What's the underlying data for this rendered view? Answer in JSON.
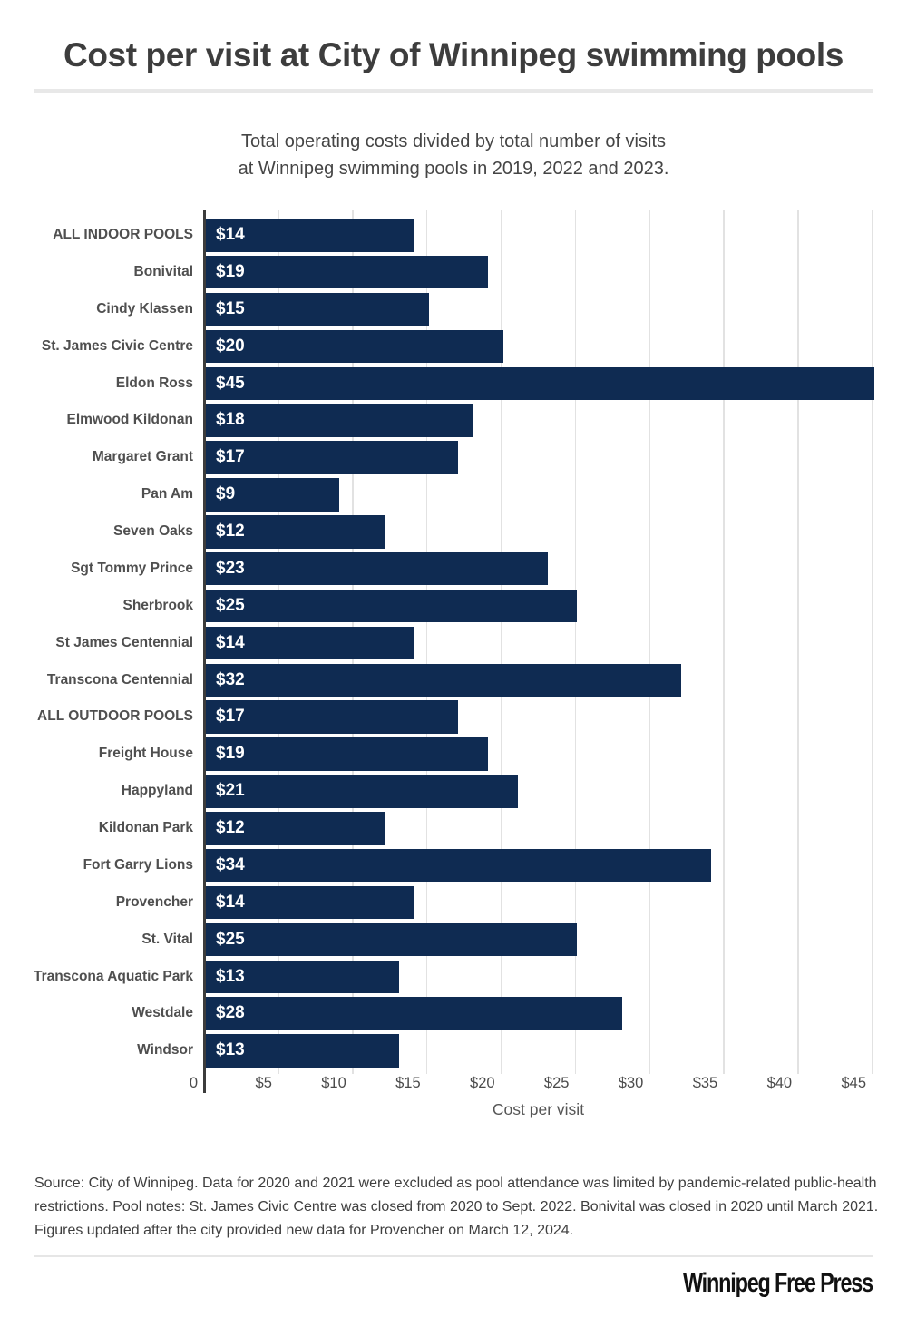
{
  "header": {
    "title": "Cost per visit at City of Winnipeg swimming pools",
    "subtitle_line1": "Total operating costs divided by total number of visits",
    "subtitle_line2": "at Winnipeg swimming pools in 2019, 2022 and 2023."
  },
  "chart_data": {
    "type": "bar",
    "orientation": "horizontal",
    "title": "Cost per visit at City of Winnipeg swimming pools",
    "subtitle": "Total operating costs divided by total number of visits at Winnipeg swimming pools in 2019, 2022 and 2023.",
    "categories": [
      "ALL INDOOR POOLS",
      "Bonivital",
      "Cindy Klassen",
      "St. James Civic Centre",
      "Eldon Ross",
      "Elmwood Kildonan",
      "Margaret Grant",
      "Pan Am",
      "Seven Oaks",
      "Sgt Tommy Prince",
      "Sherbrook",
      "St James Centennial",
      "Transcona Centennial",
      "ALL OUTDOOR POOLS",
      "Freight House",
      "Happyland",
      "Kildonan Park",
      "Fort Garry Lions",
      "Provencher",
      "St. Vital",
      "Transcona Aquatic Park",
      "Westdale",
      "Windsor"
    ],
    "values": [
      14,
      19,
      15,
      20,
      45,
      18,
      17,
      9,
      12,
      23,
      25,
      14,
      32,
      17,
      19,
      21,
      12,
      34,
      14,
      25,
      13,
      28,
      13
    ],
    "value_labels": [
      "$14",
      "$19",
      "$15",
      "$20",
      "$45",
      "$18",
      "$17",
      "$9",
      "$12",
      "$23",
      "$25",
      "$14",
      "$32",
      "$17",
      "$19",
      "$21",
      "$12",
      "$34",
      "$14",
      "$25",
      "$13",
      "$28",
      "$13"
    ],
    "xlabel": "Cost per visit",
    "ylabel": "",
    "x_ticks": [
      "0",
      "$5",
      "$10",
      "$15",
      "$20",
      "$25",
      "$30",
      "$35",
      "$40",
      "$45"
    ],
    "xlim": [
      0,
      45
    ],
    "grid": true,
    "legend": "none",
    "bar_color": "#0f2b52",
    "value_label_color": "#ffffff"
  },
  "source_note": "Source: City of Winnipeg. Data for 2020 and 2021 were excluded as pool attendance was limited by pandemic-related public-health restrictions. Pool notes: St. James Civic Centre was closed from 2020 to Sept. 2022. Bonivital was closed in 2020 until March 2021. Figures updated after the city provided new data for Provencher on March 12, 2024.",
  "footer": {
    "brand": "Winnipeg Free Press"
  }
}
